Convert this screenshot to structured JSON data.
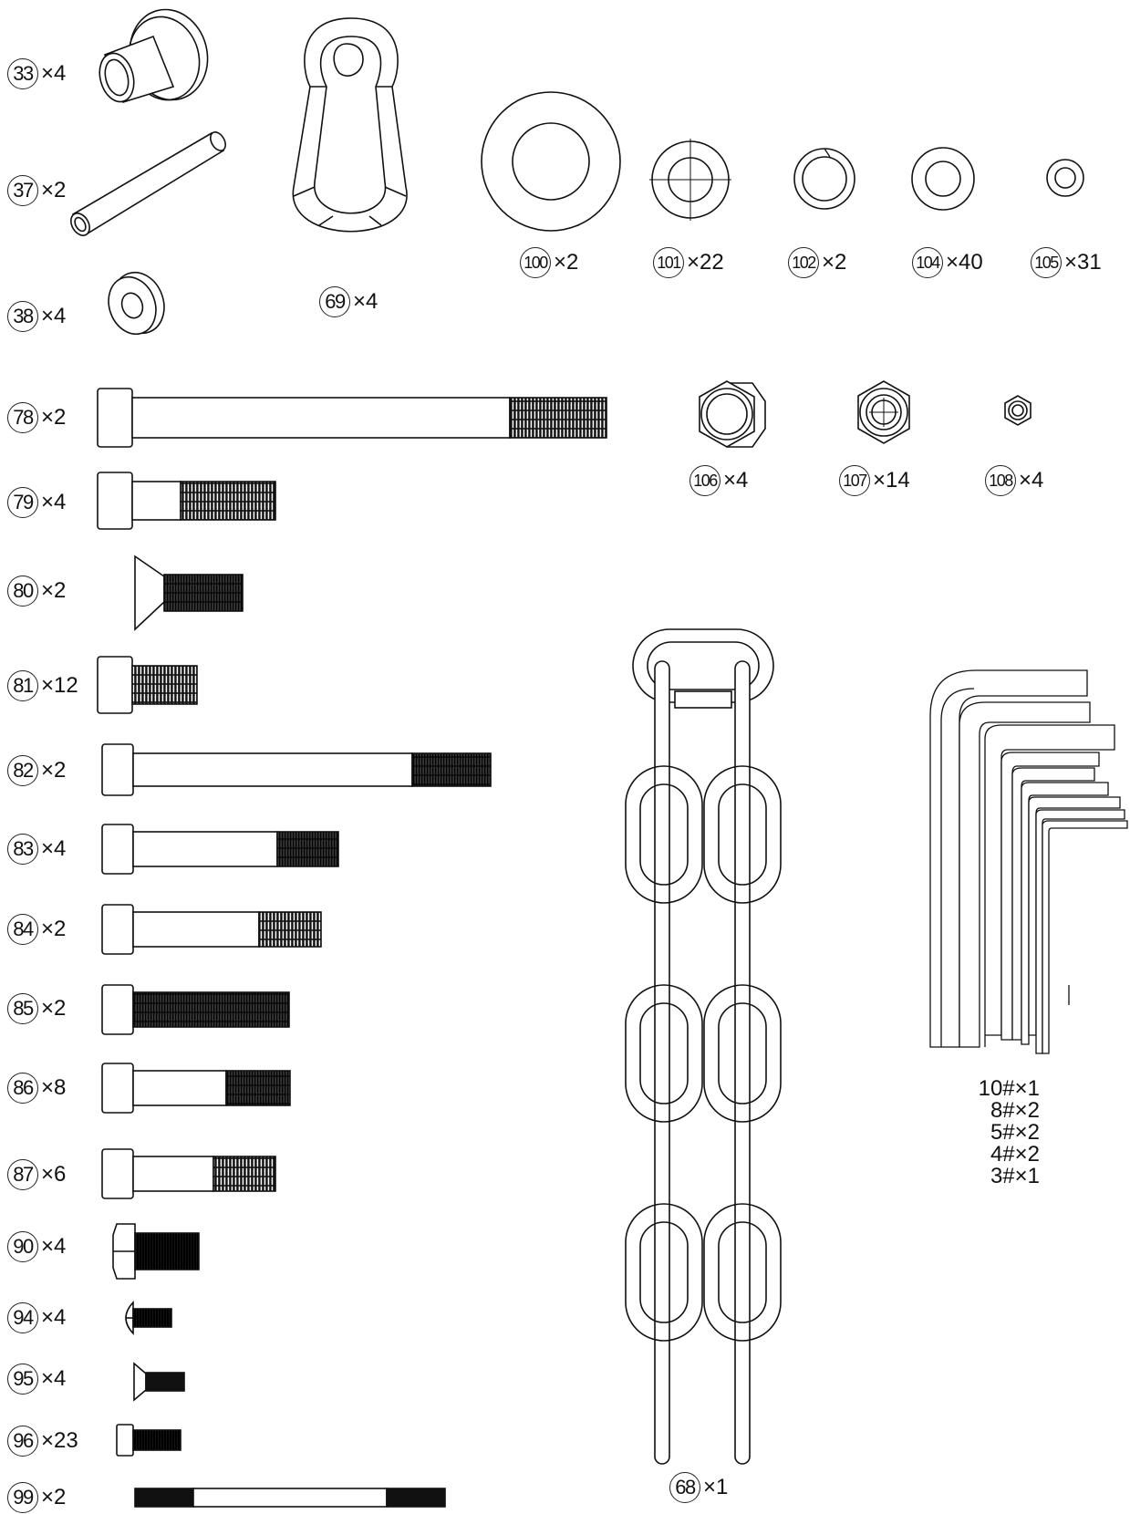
{
  "parts": [
    {
      "no": "33",
      "qty": "×4"
    },
    {
      "no": "37",
      "qty": "×2"
    },
    {
      "no": "38",
      "qty": "×4"
    },
    {
      "no": "69",
      "qty": "×4"
    },
    {
      "no": "100",
      "qty": "×2"
    },
    {
      "no": "101",
      "qty": "×22"
    },
    {
      "no": "102",
      "qty": "×2"
    },
    {
      "no": "104",
      "qty": "×40"
    },
    {
      "no": "105",
      "qty": "×31"
    },
    {
      "no": "78",
      "qty": "×2"
    },
    {
      "no": "79",
      "qty": "×4"
    },
    {
      "no": "80",
      "qty": "×2"
    },
    {
      "no": "81",
      "qty": "×12"
    },
    {
      "no": "82",
      "qty": "×2"
    },
    {
      "no": "83",
      "qty": "×4"
    },
    {
      "no": "84",
      "qty": "×2"
    },
    {
      "no": "85",
      "qty": "×2"
    },
    {
      "no": "86",
      "qty": "×8"
    },
    {
      "no": "87",
      "qty": "×6"
    },
    {
      "no": "90",
      "qty": "×4"
    },
    {
      "no": "94",
      "qty": "×4"
    },
    {
      "no": "95",
      "qty": "×4"
    },
    {
      "no": "96",
      "qty": "×23"
    },
    {
      "no": "99",
      "qty": "×2"
    },
    {
      "no": "106",
      "qty": "×4"
    },
    {
      "no": "107",
      "qty": "×14"
    },
    {
      "no": "108",
      "qty": "×4"
    },
    {
      "no": "68",
      "qty": "×1"
    }
  ],
  "allen_keys": [
    "10#×1",
    "8#×2",
    "5#×2",
    "4#×2",
    "3#×1"
  ]
}
